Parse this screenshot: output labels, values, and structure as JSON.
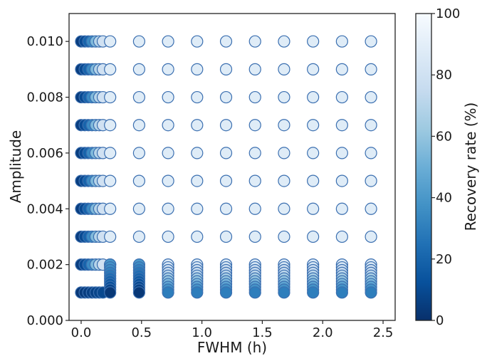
{
  "chart_data": {
    "type": "scatter",
    "title": "",
    "xlabel": "FWHM (h)",
    "ylabel": "Amplitude",
    "xlim": [
      -0.1,
      2.6
    ],
    "ylim": [
      0.0,
      0.011
    ],
    "xticks": [
      0.0,
      0.5,
      1.0,
      1.5,
      2.0,
      2.5
    ],
    "xtick_labels": [
      "0.0",
      "0.5",
      "1.0",
      "1.5",
      "2.0",
      "2.5"
    ],
    "yticks": [
      0.0,
      0.002,
      0.004,
      0.006,
      0.008,
      0.01
    ],
    "ytick_labels": [
      "0.000",
      "0.002",
      "0.004",
      "0.006",
      "0.008",
      "0.010"
    ],
    "grid": false,
    "marker": "circle",
    "marker_edge_color": "#3b6fb0",
    "colormap": "Blues_r",
    "colorbar": {
      "label": "Recovery rate (%)",
      "range": [
        0,
        100
      ],
      "ticks": [
        0,
        20,
        40,
        60,
        80,
        100
      ],
      "tick_labels": [
        "0",
        "20",
        "40",
        "60",
        "80",
        "100"
      ]
    },
    "point_groups": [
      {
        "fwhm": [
          0.0,
          0.03,
          0.06,
          0.09,
          0.12,
          0.15,
          0.18,
          0.24
        ],
        "amplitudes": [
          0.01,
          0.009,
          0.008,
          0.007,
          0.006,
          0.005,
          0.004,
          0.003,
          0.002
        ],
        "recovery_by_fwhm": [
          5,
          10,
          20,
          35,
          55,
          70,
          80,
          88
        ]
      },
      {
        "fwhm": [
          0.0,
          0.03,
          0.06,
          0.09,
          0.12,
          0.15,
          0.18
        ],
        "amplitudes": [
          0.001
        ],
        "recovery_by_fwhm": [
          3,
          4,
          5,
          6,
          7,
          8,
          9
        ]
      },
      {
        "fwhm": [
          0.24
        ],
        "amplitudes": [
          0.001,
          0.0011,
          0.0012,
          0.0013,
          0.0014,
          0.0015,
          0.0016,
          0.0017,
          0.0018,
          0.0019,
          0.002
        ],
        "recovery_by_amplitude": [
          3,
          8,
          12,
          16,
          20,
          24,
          28,
          32,
          36,
          38,
          40
        ]
      },
      {
        "fwhm": [
          0.48,
          0.72,
          0.96,
          1.2,
          1.44,
          1.68,
          1.92,
          2.16,
          2.4
        ],
        "amplitudes": [
          0.01,
          0.009,
          0.008,
          0.007,
          0.006,
          0.005,
          0.004,
          0.003
        ],
        "recovery": 88
      },
      {
        "fwhm": [
          0.48
        ],
        "amplitudes": [
          0.001,
          0.0011,
          0.0012,
          0.0013,
          0.0014,
          0.0015,
          0.0016,
          0.0017,
          0.0018,
          0.0019,
          0.002
        ],
        "recovery_by_amplitude": [
          3,
          6,
          9,
          12,
          16,
          20,
          24,
          28,
          32,
          36,
          40
        ]
      },
      {
        "fwhm": [
          0.72,
          0.96,
          1.2,
          1.44,
          1.68,
          1.92,
          2.16,
          2.4
        ],
        "amplitudes": [
          0.001,
          0.0011,
          0.0012,
          0.0013,
          0.0014,
          0.0015,
          0.0016,
          0.0017,
          0.0018,
          0.0019,
          0.002
        ],
        "recovery_by_amplitude": [
          30,
          38,
          46,
          54,
          60,
          66,
          72,
          76,
          80,
          84,
          86
        ]
      }
    ]
  }
}
